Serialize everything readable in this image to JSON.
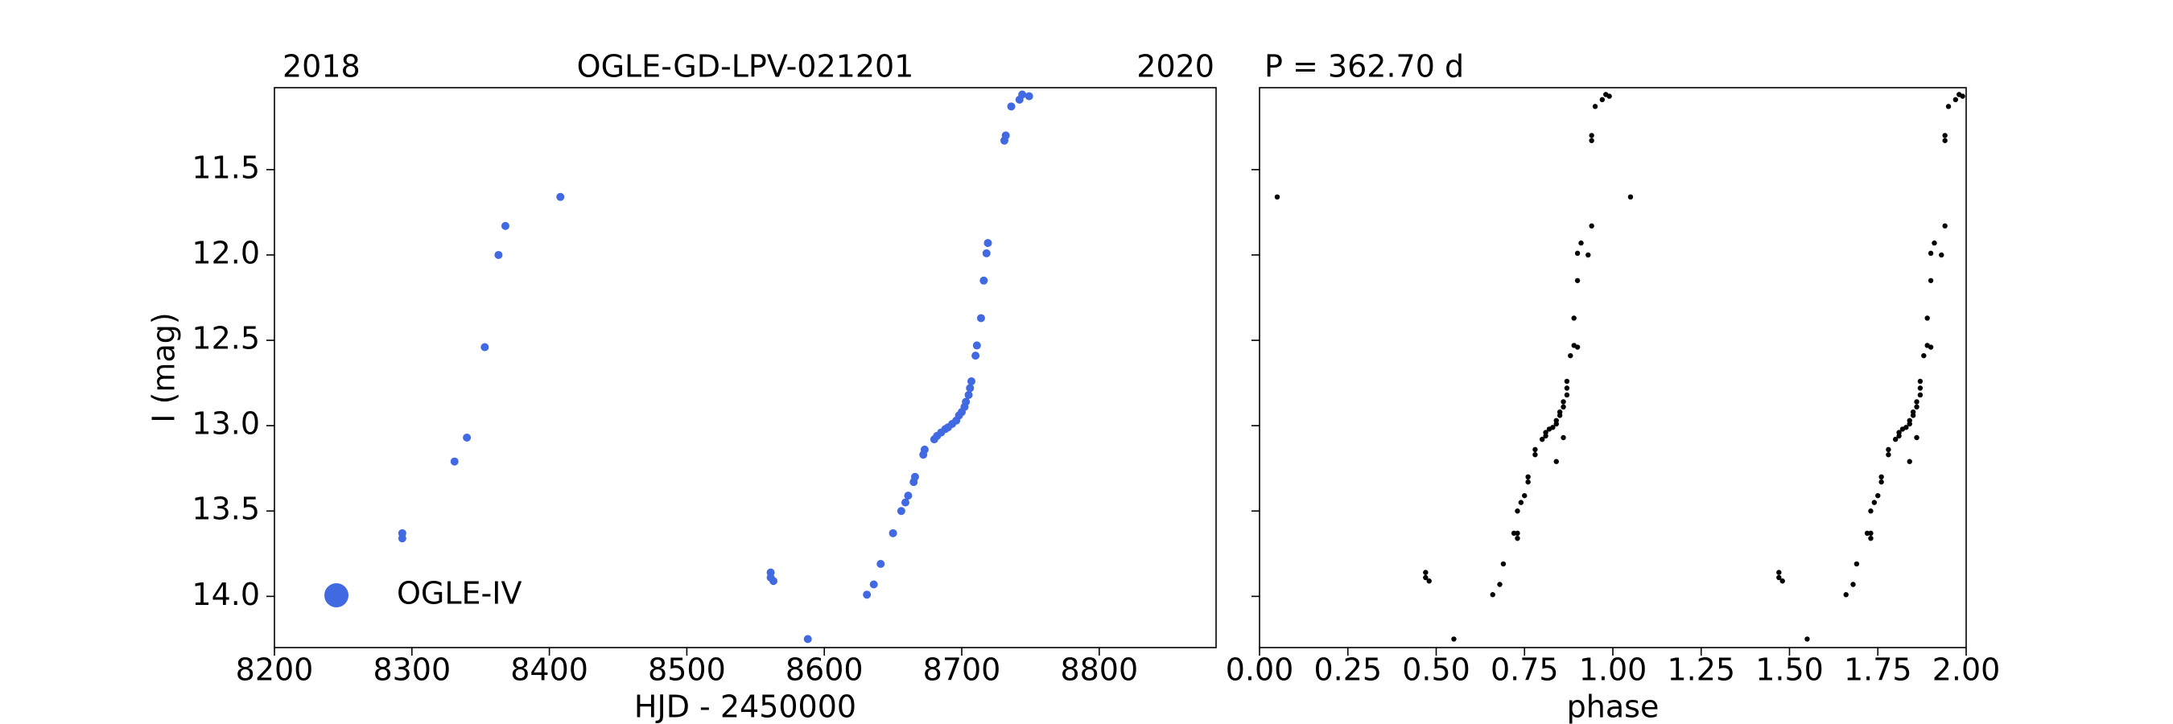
{
  "chart_data": [
    {
      "type": "scatter",
      "title": "OGLE-GD-LPV-021201",
      "annotations": [
        "2018",
        "2020"
      ],
      "xlabel": "HJD - 2450000",
      "ylabel": "I (mag)",
      "legend": "lower left",
      "x": [
        8293,
        8293,
        8331,
        8340,
        8353,
        8363,
        8368,
        8408,
        8561,
        8563,
        8561,
        8588,
        8631,
        8636,
        8641,
        8650,
        8656,
        8659,
        8661,
        8665,
        8666,
        8672,
        8673,
        8680,
        8682,
        8685,
        8688,
        8690,
        8693,
        8696,
        8698,
        8700,
        8702,
        8703,
        8705,
        8706,
        8707,
        8710,
        8711,
        8714,
        8716,
        8718,
        8719,
        8731,
        8732,
        8736,
        8742,
        8744,
        8749
      ],
      "series": [
        {
          "name": "OGLE-IV",
          "color": "#4169e1",
          "values": [
            13.63,
            13.66,
            13.21,
            13.07,
            12.54,
            12.0,
            11.83,
            11.66,
            13.86,
            13.91,
            13.89,
            14.25,
            13.99,
            13.93,
            13.81,
            13.63,
            13.5,
            13.45,
            13.41,
            13.33,
            13.3,
            13.17,
            13.14,
            13.08,
            13.06,
            13.04,
            13.02,
            13.01,
            12.99,
            12.97,
            12.94,
            12.92,
            12.89,
            12.86,
            12.82,
            12.78,
            12.74,
            12.59,
            12.53,
            12.37,
            12.15,
            11.99,
            11.93,
            11.33,
            11.3,
            11.13,
            11.09,
            11.06,
            11.07
          ]
        }
      ],
      "xlim": [
        8200,
        8885
      ],
      "xticks": [
        8200,
        8300,
        8400,
        8500,
        8600,
        8700,
        8800
      ],
      "ylim": [
        11.02,
        14.3
      ],
      "y_inverted": true,
      "yticks": [
        11.5,
        {
          "value": 12,
          "label": "12.0"
        },
        12.5,
        {
          "value": 13,
          "label": "13.0"
        },
        13.5,
        {
          "value": 14,
          "label": "14.0"
        }
      ]
    },
    {
      "type": "scatter",
      "title": "P = 362.70 d",
      "xlabel": "phase",
      "x": [
        0.73,
        0.73,
        0.84,
        0.86,
        0.9,
        0.93,
        0.94,
        0.05,
        0.47,
        0.48,
        0.47,
        0.55,
        0.66,
        0.68,
        0.69,
        0.72,
        0.73,
        0.74,
        0.75,
        0.76,
        0.76,
        0.78,
        0.78,
        0.8,
        0.81,
        0.81,
        0.82,
        0.83,
        0.84,
        0.84,
        0.85,
        0.85,
        0.86,
        0.86,
        0.87,
        0.87,
        0.87,
        0.88,
        0.89,
        0.89,
        0.9,
        0.9,
        0.91,
        0.94,
        0.94,
        0.95,
        0.97,
        0.98,
        0.99,
        1.73,
        1.73,
        1.84,
        1.86,
        1.9,
        1.93,
        1.94,
        1.05,
        1.47,
        1.48,
        1.47,
        1.55,
        1.66,
        1.68,
        1.69,
        1.72,
        1.73,
        1.74,
        1.75,
        1.76,
        1.76,
        1.78,
        1.78,
        1.8,
        1.81,
        1.81,
        1.82,
        1.83,
        1.84,
        1.84,
        1.85,
        1.85,
        1.86,
        1.86,
        1.87,
        1.87,
        1.87,
        1.88,
        1.89,
        1.89,
        1.9,
        1.9,
        1.91,
        1.94,
        1.94,
        1.95,
        1.97,
        1.98,
        1.99
      ],
      "series": [
        {
          "color": "#000000",
          "values": [
            13.63,
            13.66,
            13.21,
            13.07,
            12.54,
            12.0,
            11.83,
            11.66,
            13.86,
            13.91,
            13.89,
            14.25,
            13.99,
            13.93,
            13.81,
            13.63,
            13.5,
            13.45,
            13.41,
            13.33,
            13.3,
            13.17,
            13.14,
            13.08,
            13.06,
            13.04,
            13.02,
            13.01,
            12.99,
            12.97,
            12.94,
            12.92,
            12.89,
            12.86,
            12.82,
            12.78,
            12.74,
            12.59,
            12.53,
            12.37,
            12.15,
            11.99,
            11.93,
            11.33,
            11.3,
            11.13,
            11.09,
            11.06,
            11.07,
            13.63,
            13.66,
            13.21,
            13.07,
            12.54,
            12.0,
            11.83,
            11.66,
            13.86,
            13.91,
            13.89,
            14.25,
            13.99,
            13.93,
            13.81,
            13.63,
            13.5,
            13.45,
            13.41,
            13.33,
            13.3,
            13.17,
            13.14,
            13.08,
            13.06,
            13.04,
            13.02,
            13.01,
            12.99,
            12.97,
            12.94,
            12.92,
            12.89,
            12.86,
            12.82,
            12.78,
            12.74,
            12.59,
            12.53,
            12.37,
            12.15,
            11.99,
            11.93,
            11.33,
            11.3,
            11.13,
            11.09,
            11.06,
            11.07
          ]
        }
      ],
      "xlim": [
        0,
        2
      ],
      "xticks": [
        {
          "value": 0,
          "label": "0.00"
        },
        0.25,
        {
          "value": 0.5,
          "label": "0.50"
        },
        0.75,
        {
          "value": 1,
          "label": "1.00"
        },
        1.25,
        {
          "value": 1.5,
          "label": "1.50"
        },
        1.75,
        {
          "value": 2,
          "label": "2.00"
        }
      ],
      "ylim": [
        11.02,
        14.3
      ],
      "y_inverted": true
    }
  ]
}
